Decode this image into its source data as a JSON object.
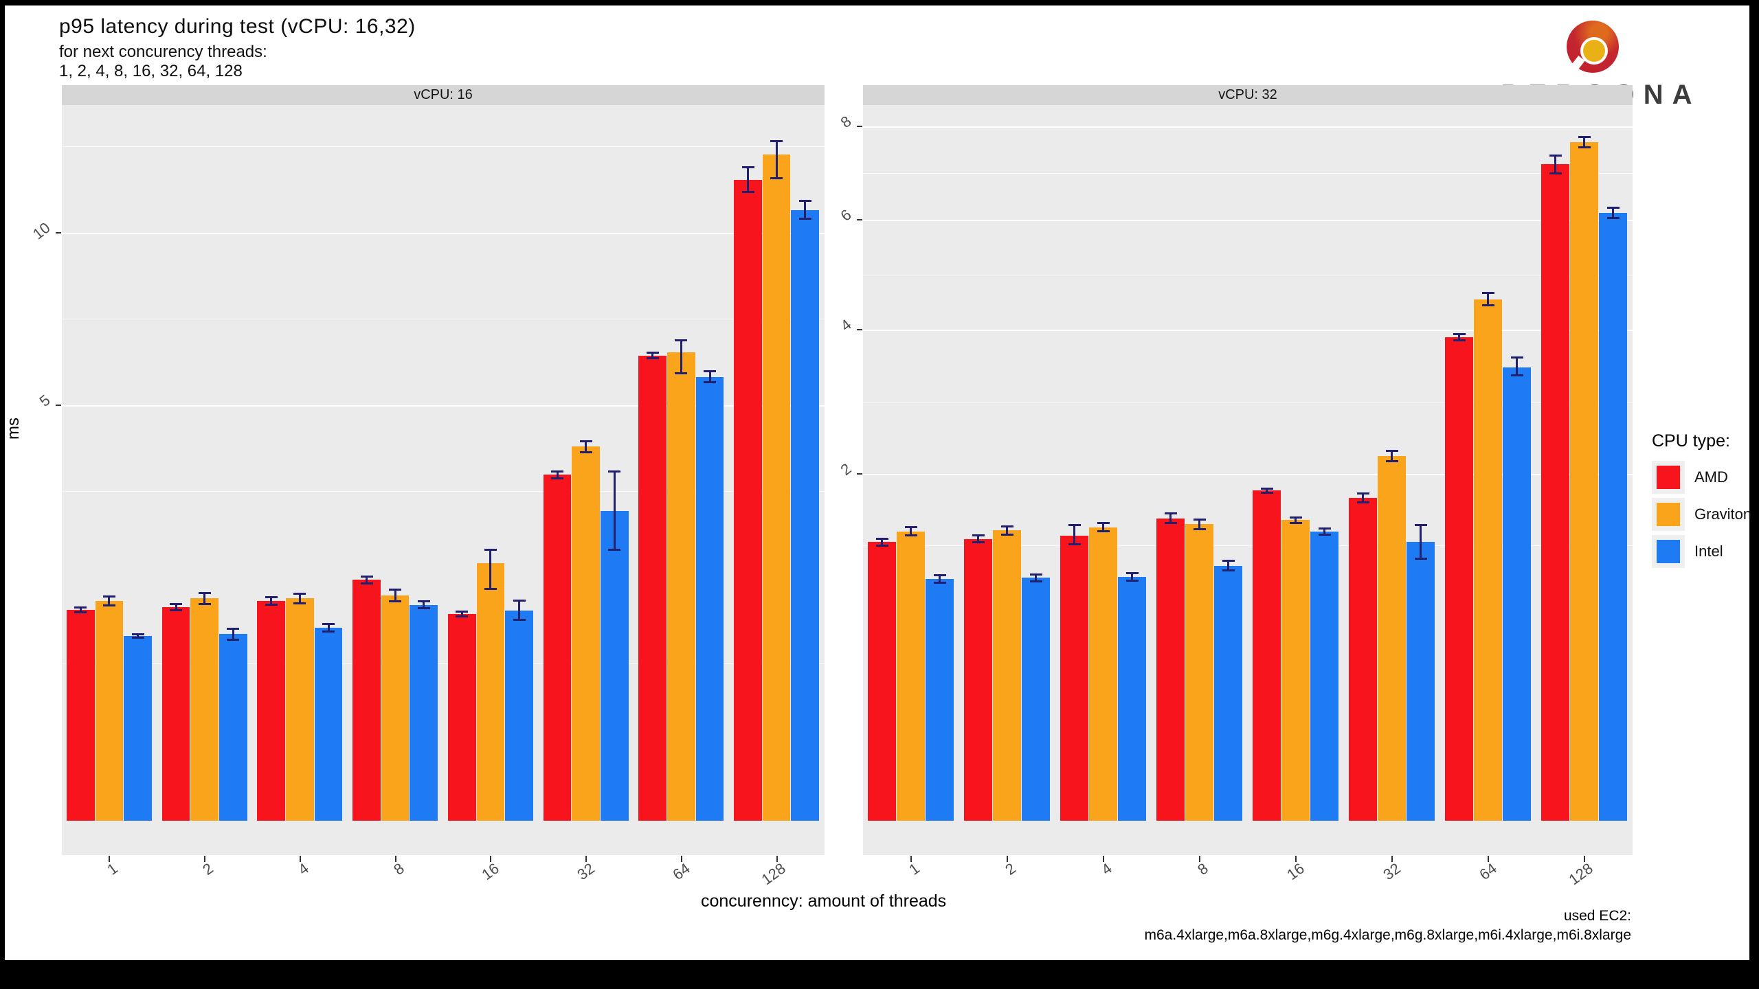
{
  "header": {
    "title": "p95 latency during test  (vCPU: 16,32)",
    "subtitle_line1": "for next concurency threads:",
    "subtitle_line2": "1, 2, 4, 8, 16, 32, 64, 128"
  },
  "branding": {
    "wordmark": "PERCONA",
    "mark_red": "#c42630",
    "mark_gold": "#eab117"
  },
  "axes": {
    "y_label": "ms",
    "x_label": "concurenncy: amount of threads"
  },
  "caption": {
    "line1": "used EC2:",
    "line2": "m6a.4xlarge,m6a.8xlarge,m6g.4xlarge,m6g.8xlarge,m6i.4xlarge,m6i.8xlarge"
  },
  "legend": {
    "title": "CPU type:",
    "items": [
      {
        "label": "AMD",
        "color": "#f8141c"
      },
      {
        "label": "Graviton",
        "color": "#faa41b"
      },
      {
        "label": "Intel",
        "color": "#1f7bf4"
      }
    ]
  },
  "colors": {
    "amd": "#f8141c",
    "graviton": "#faa41b",
    "intel": "#1f7bf4",
    "errorbar": "#20206e",
    "panel_bg": "#ebebeb",
    "strip_bg": "#d6d6d6",
    "grid": "#ffffff"
  },
  "chart_data": [
    {
      "type": "bar",
      "facet": "vCPU: 16",
      "scale": "sqrt",
      "ylim": [
        0,
        13.43
      ],
      "y_ticks": [
        5,
        10
      ],
      "y_minor": [
        0.72,
        3.14,
        7.29,
        13.14
      ],
      "categories": [
        "1",
        "2",
        "4",
        "8",
        "16",
        "32",
        "64",
        "128"
      ],
      "series": [
        {
          "name": "AMD",
          "color": "#f8141c",
          "values": [
            1.29,
            1.32,
            1.4,
            1.68,
            1.24,
            3.46,
            6.26,
            11.88
          ],
          "err_lo": [
            1.26,
            1.28,
            1.35,
            1.63,
            1.21,
            3.39,
            6.18,
            11.42
          ],
          "err_hi": [
            1.32,
            1.36,
            1.45,
            1.73,
            1.27,
            3.53,
            6.34,
            12.34
          ]
        },
        {
          "name": "Graviton",
          "color": "#faa41b",
          "values": [
            1.4,
            1.43,
            1.43,
            1.47,
            1.92,
            4.05,
            6.35,
            12.84
          ],
          "err_lo": [
            1.34,
            1.36,
            1.37,
            1.39,
            1.56,
            3.93,
            5.79,
            11.94
          ],
          "err_hi": [
            1.46,
            1.5,
            1.49,
            1.55,
            2.13,
            4.17,
            6.67,
            13.34
          ]
        },
        {
          "name": "Intel",
          "color": "#1f7bf4",
          "values": [
            0.99,
            1.01,
            1.08,
            1.35,
            1.28,
            2.78,
            5.7,
            10.79
          ],
          "err_lo": [
            0.97,
            0.95,
            1.04,
            1.31,
            1.17,
            2.13,
            5.56,
            10.47
          ],
          "err_hi": [
            1.01,
            1.07,
            1.12,
            1.39,
            1.4,
            3.53,
            5.84,
            11.11
          ]
        }
      ]
    },
    {
      "type": "bar",
      "facet": "vCPU: 32",
      "scale": "sqrt",
      "ylim": [
        0,
        7.71
      ],
      "y_ticks": [
        2,
        4,
        6,
        8
      ],
      "y_minor": [
        1.26,
        2.91,
        4.95,
        6.96
      ],
      "categories": [
        "1",
        "2",
        "4",
        "8",
        "16",
        "32",
        "64",
        "128"
      ],
      "series": [
        {
          "name": "AMD",
          "color": "#f8141c",
          "values": [
            1.29,
            1.32,
            1.35,
            1.52,
            1.81,
            1.73,
            3.88,
            7.15
          ],
          "err_lo": [
            1.26,
            1.29,
            1.27,
            1.47,
            1.79,
            1.68,
            3.83,
            6.95
          ],
          "err_hi": [
            1.32,
            1.35,
            1.45,
            1.57,
            1.83,
            1.78,
            3.93,
            7.35
          ]
        },
        {
          "name": "Graviton",
          "color": "#faa41b",
          "values": [
            1.39,
            1.4,
            1.43,
            1.46,
            1.5,
            2.21,
            4.51,
            7.64
          ],
          "err_lo": [
            1.35,
            1.36,
            1.39,
            1.41,
            1.47,
            2.15,
            4.41,
            7.52
          ],
          "err_hi": [
            1.43,
            1.44,
            1.47,
            1.51,
            1.53,
            2.27,
            4.63,
            7.76
          ]
        },
        {
          "name": "Intel",
          "color": "#1f7bf4",
          "values": [
            0.97,
            0.98,
            0.99,
            1.08,
            1.39,
            1.29,
            3.41,
            6.13
          ],
          "err_lo": [
            0.94,
            0.95,
            0.96,
            1.04,
            1.36,
            1.14,
            3.29,
            6.03
          ],
          "err_hi": [
            1.0,
            1.01,
            1.02,
            1.12,
            1.42,
            1.45,
            3.56,
            6.23
          ]
        }
      ]
    }
  ]
}
